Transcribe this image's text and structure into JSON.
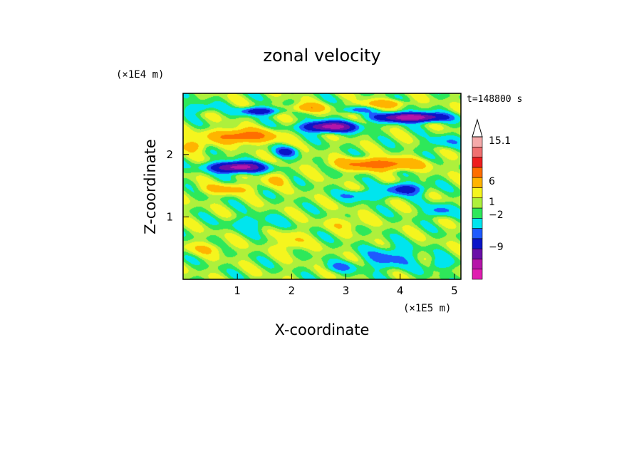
{
  "chart_data": {
    "type": "heatmap",
    "title": "zonal velocity",
    "xlabel": "X-coordinate",
    "ylabel": "Z-coordinate",
    "x_unit": "(×1E5 m)",
    "y_unit": "(×1E4 m)",
    "time_label": "t=148800 s",
    "xlim": [
      0,
      5.12
    ],
    "ylim": [
      0,
      2.98
    ],
    "x_ticks": [
      "1",
      "2",
      "3",
      "4",
      "5"
    ],
    "y_ticks": [
      "1",
      "2"
    ],
    "colorbar": {
      "tick_labels": [
        "15.1",
        "6",
        "1",
        "−2",
        "−9"
      ],
      "levels": [
        {
          "value": -12,
          "color": "#e01eb0"
        },
        {
          "value": -9,
          "color": "#b515a8"
        },
        {
          "value": -6,
          "color": "#6a0fa8"
        },
        {
          "value": -4,
          "color": "#0a14c8"
        },
        {
          "value": -2,
          "color": "#1e5aff"
        },
        {
          "value": -1,
          "color": "#00e5ee"
        },
        {
          "value": 0,
          "color": "#2ee85a"
        },
        {
          "value": 0.5,
          "color": "#aef03c"
        },
        {
          "value": 1,
          "color": "#f5f51e"
        },
        {
          "value": 2,
          "color": "#ffb400"
        },
        {
          "value": 4,
          "color": "#ff6e00"
        },
        {
          "value": 6,
          "color": "#ee1e1e"
        },
        {
          "value": 9,
          "color": "#f07070"
        },
        {
          "value": 12,
          "color": "#f5aaaa"
        },
        {
          "value": 15.1,
          "color": "#ffffff"
        }
      ]
    },
    "field_features": [
      {
        "x": 1.1,
        "z": 2.3,
        "sx": 0.55,
        "sz": 0.1,
        "amp": 5
      },
      {
        "x": 1.4,
        "z": 2.7,
        "sx": 0.35,
        "sz": 0.06,
        "amp": -4
      },
      {
        "x": 0.3,
        "z": 2.75,
        "sx": 0.25,
        "sz": 0.08,
        "amp": -1.6
      },
      {
        "x": 1.0,
        "z": 1.8,
        "sx": 0.45,
        "sz": 0.08,
        "amp": -8
      },
      {
        "x": 1.9,
        "z": 2.05,
        "sx": 0.2,
        "sz": 0.08,
        "amp": -3
      },
      {
        "x": 2.7,
        "z": 2.45,
        "sx": 0.45,
        "sz": 0.08,
        "amp": -8
      },
      {
        "x": 4.2,
        "z": 2.6,
        "sx": 0.55,
        "sz": 0.07,
        "amp": -9
      },
      {
        "x": 3.2,
        "z": 2.72,
        "sx": 0.25,
        "sz": 0.05,
        "amp": -2
      },
      {
        "x": 3.6,
        "z": 1.85,
        "sx": 0.7,
        "sz": 0.09,
        "amp": 5
      },
      {
        "x": 2.3,
        "z": 2.75,
        "sx": 0.3,
        "sz": 0.07,
        "amp": 3
      },
      {
        "x": 3.7,
        "z": 2.82,
        "sx": 0.4,
        "sz": 0.06,
        "amp": 2.5
      },
      {
        "x": 0.8,
        "z": 1.45,
        "sx": 0.45,
        "sz": 0.08,
        "amp": 2
      },
      {
        "x": 3.3,
        "z": 1.35,
        "sx": 0.4,
        "sz": 0.08,
        "amp": -2
      },
      {
        "x": 4.1,
        "z": 1.45,
        "sx": 0.35,
        "sz": 0.09,
        "amp": -3.5
      },
      {
        "x": 4.7,
        "z": 1.1,
        "sx": 0.25,
        "sz": 0.1,
        "amp": -2
      },
      {
        "x": 1.3,
        "z": 0.9,
        "sx": 0.45,
        "sz": 0.12,
        "amp": -1.3
      },
      {
        "x": 3.8,
        "z": 0.35,
        "sx": 0.45,
        "sz": 0.18,
        "amp": -2
      },
      {
        "x": 2.9,
        "z": 0.2,
        "sx": 0.3,
        "sz": 0.08,
        "amp": -1.5
      },
      {
        "x": 4.7,
        "z": 0.25,
        "sx": 0.2,
        "sz": 0.1,
        "amp": -1.5
      },
      {
        "x": 0.4,
        "z": 0.5,
        "sx": 0.4,
        "sz": 0.1,
        "amp": 1.2
      },
      {
        "x": 2.0,
        "z": 0.6,
        "sx": 0.25,
        "sz": 0.15,
        "amp": 1.5
      },
      {
        "x": 3.0,
        "z": 0.9,
        "sx": 0.35,
        "sz": 0.1,
        "amp": 1.2
      },
      {
        "x": 0.2,
        "z": 2.15,
        "sx": 0.25,
        "sz": 0.1,
        "amp": 2
      },
      {
        "x": 1.7,
        "z": 1.6,
        "sx": 0.25,
        "sz": 0.1,
        "amp": 1.5
      },
      {
        "x": 4.8,
        "z": 2.2,
        "sx": 0.3,
        "sz": 0.1,
        "amp": -1.5
      }
    ]
  }
}
